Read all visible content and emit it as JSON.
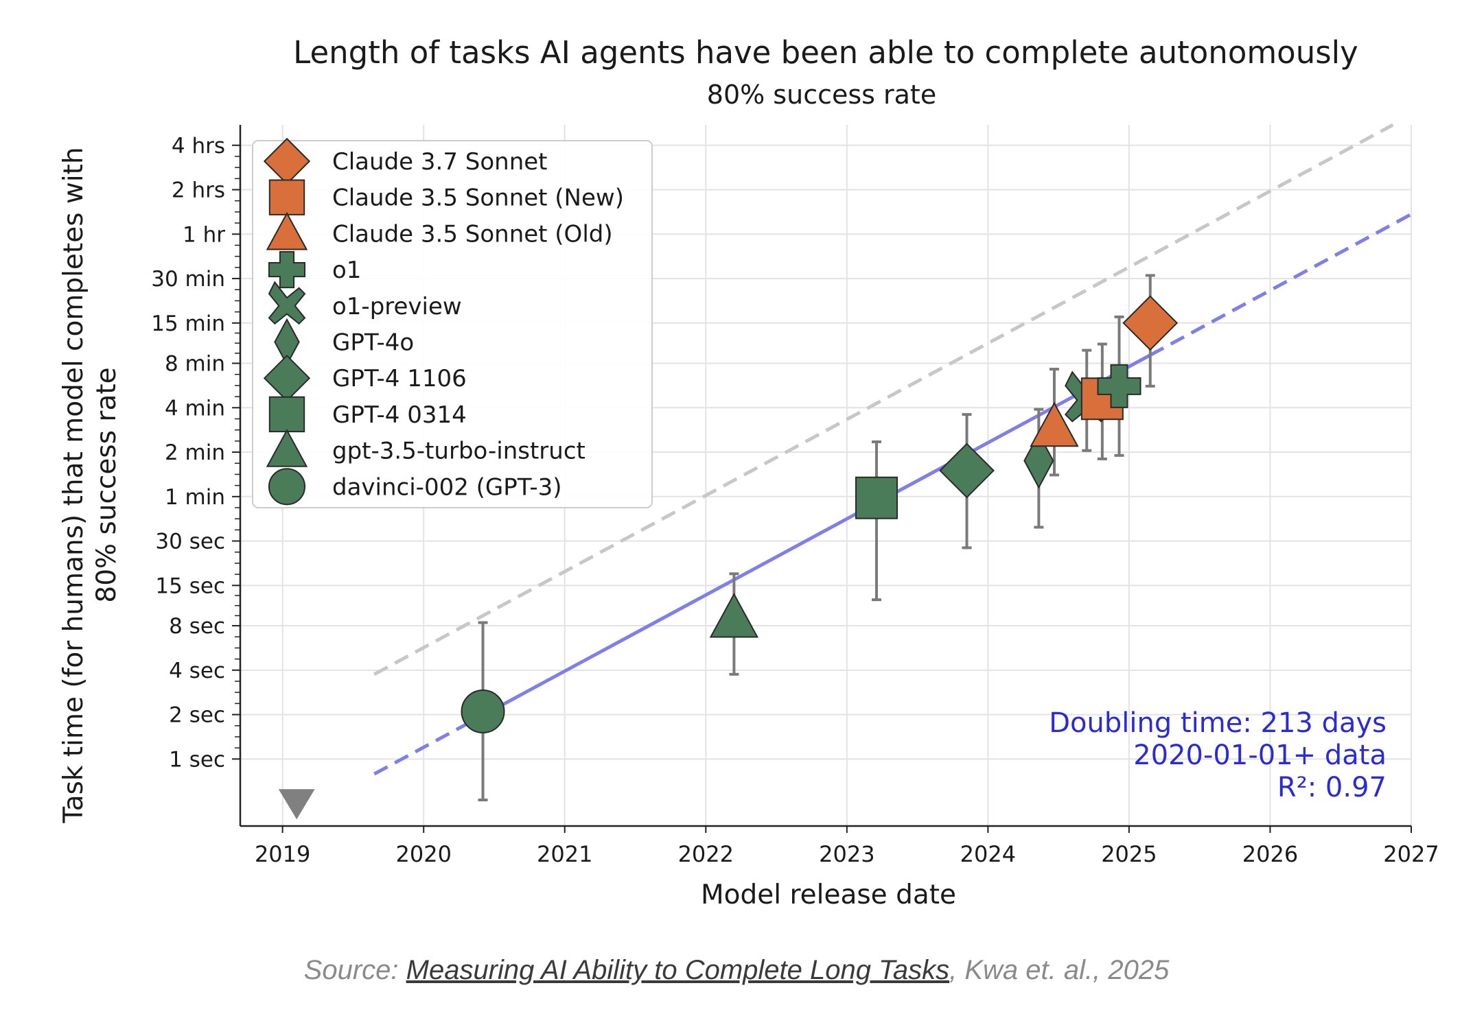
{
  "chart_data": {
    "type": "scatter",
    "title": "Length of tasks AI agents have been able to complete autonomously",
    "subtitle": "80% success rate",
    "xlabel": "Model release date",
    "ylabel_line1": "Task time (for humans) that model completes with",
    "ylabel_line2": "80% success rate",
    "yscale": "log2 (minutes)",
    "xlim": [
      2018.7,
      2027.0
    ],
    "ylim_minutes": [
      0.00586,
      330
    ],
    "x_ticks": [
      2019,
      2020,
      2021,
      2022,
      2023,
      2024,
      2025,
      2026,
      2027
    ],
    "x_tick_labels": [
      "2019",
      "2020",
      "2021",
      "2022",
      "2023",
      "2024",
      "2025",
      "2026",
      "2027"
    ],
    "y_ticks_minutes": [
      0.01667,
      0.03333,
      0.06667,
      0.13333,
      0.25,
      0.5,
      1,
      2,
      4,
      8,
      15,
      30,
      60,
      120,
      240
    ],
    "y_tick_labels": [
      "1 sec",
      "2 sec",
      "4 sec",
      "8 sec",
      "15 sec",
      "30 sec",
      "1 min",
      "2 min",
      "4 min",
      "8 min",
      "15 min",
      "30 min",
      "1 hr",
      "2 hrs",
      "4 hrs"
    ],
    "legend_position": "upper-left",
    "legend": [
      {
        "label": "Claude 3.7 Sonnet",
        "marker": "diamond",
        "color": "#d9703b"
      },
      {
        "label": "Claude 3.5 Sonnet (New)",
        "marker": "square",
        "color": "#d9703b"
      },
      {
        "label": "Claude 3.5 Sonnet (Old)",
        "marker": "triangle",
        "color": "#d9703b"
      },
      {
        "label": "o1",
        "marker": "plus",
        "color": "#4a7c59"
      },
      {
        "label": "o1-preview",
        "marker": "x",
        "color": "#4a7c59"
      },
      {
        "label": "GPT-4o",
        "marker": "thin-diamond",
        "color": "#4a7c59"
      },
      {
        "label": "GPT-4 1106",
        "marker": "diamond",
        "color": "#4a7c59"
      },
      {
        "label": "GPT-4 0314",
        "marker": "square",
        "color": "#4a7c59"
      },
      {
        "label": "gpt-3.5-turbo-instruct",
        "marker": "triangle",
        "color": "#4a7c59"
      },
      {
        "label": "davinci-002 (GPT-3)",
        "marker": "circle",
        "color": "#4a7c59"
      }
    ],
    "points": [
      {
        "model": "davinci-002 (GPT-3)",
        "date": 2020.42,
        "minutes": 0.035,
        "err_low": 0.0088,
        "err_high": 0.14,
        "marker": "circle",
        "color": "#4a7c59"
      },
      {
        "model": "gpt-3.5-turbo-instruct",
        "date": 2022.2,
        "minutes": 0.15,
        "err_low": 0.0625,
        "err_high": 0.3,
        "marker": "triangle",
        "color": "#4a7c59"
      },
      {
        "model": "GPT-4 0314",
        "date": 2023.21,
        "minutes": 0.98,
        "err_low": 0.2,
        "err_high": 2.35,
        "marker": "square",
        "color": "#4a7c59"
      },
      {
        "model": "GPT-4 1106",
        "date": 2023.85,
        "minutes": 1.5,
        "err_low": 0.45,
        "err_high": 3.6,
        "marker": "diamond",
        "color": "#4a7c59"
      },
      {
        "model": "GPT-4o",
        "date": 2024.36,
        "minutes": 1.75,
        "err_low": 0.62,
        "err_high": 3.9,
        "marker": "thin-diamond",
        "color": "#4a7c59"
      },
      {
        "model": "Claude 3.5 Sonnet (Old)",
        "date": 2024.47,
        "minutes": 2.95,
        "err_low": 1.4,
        "err_high": 7.3,
        "marker": "triangle",
        "color": "#d9703b"
      },
      {
        "model": "o1-preview",
        "date": 2024.7,
        "minutes": 4.5,
        "err_low": 2.05,
        "err_high": 9.8,
        "marker": "x",
        "color": "#4a7c59"
      },
      {
        "model": "Claude 3.5 Sonnet (New)",
        "date": 2024.81,
        "minutes": 4.6,
        "err_low": 1.8,
        "err_high": 10.8,
        "marker": "square",
        "color": "#d9703b"
      },
      {
        "model": "o1",
        "date": 2024.93,
        "minutes": 5.6,
        "err_low": 1.9,
        "err_high": 16.5,
        "marker": "plus",
        "color": "#4a7c59"
      },
      {
        "model": "Claude 3.7 Sonnet",
        "date": 2025.15,
        "minutes": 15,
        "err_low": 5.6,
        "err_high": 31.5,
        "marker": "diamond",
        "color": "#d9703b"
      }
    ],
    "pre2020_marker": {
      "date": 2019.1,
      "marker": "triangle-down",
      "color": "#808080"
    },
    "trend_fit": {
      "color": "#7f7fec",
      "solid_from": 2020.42,
      "solid_to": 2025.15,
      "dashed_from": 2019.65,
      "dashed_to": 2027.0,
      "start_minutes": 0.0132,
      "slope_doublings_per_year": 1.714
    },
    "upper_trend": {
      "color": "#c7c7c7",
      "from": 2019.65,
      "to": 2026.87,
      "start_minutes": 0.0625,
      "end_minutes": 330
    },
    "annotation": {
      "line1": "Doubling time: 213 days",
      "line2": "2020-01-01+ data",
      "line3": "R²: 0.97",
      "color": "#2b2bd6",
      "position": "bottom-right"
    },
    "colors": {
      "anthropic": "#d9703b",
      "openai": "#4a7c59",
      "errorbar": "#7a7a7a"
    }
  },
  "caption": {
    "prefix": "Source: ",
    "link_text": "Measuring AI Ability to Complete Long Tasks",
    "suffix": ", Kwa et. al., 2025"
  }
}
